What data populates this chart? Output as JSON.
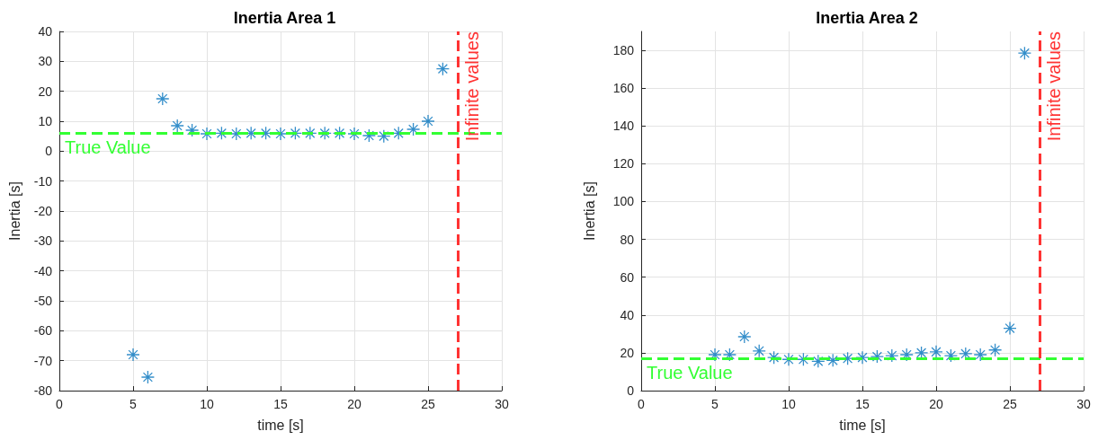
{
  "chart_data": [
    {
      "type": "scatter",
      "title": "Inertia Area 1",
      "xlabel": "time [s]",
      "ylabel": "Inertia [s]",
      "x": [
        5,
        6,
        7,
        8,
        9,
        10,
        11,
        12,
        13,
        14,
        15,
        16,
        17,
        18,
        19,
        20,
        21,
        22,
        23,
        24,
        25,
        26
      ],
      "series": [
        {
          "color": "#0072bd",
          "values": [
            -68,
            -75.5,
            17.5,
            8.5,
            7,
            5.8,
            6,
            5.8,
            6,
            6,
            5.8,
            6,
            6,
            6,
            6,
            5.8,
            5.2,
            5,
            6,
            7.3,
            10,
            27.5
          ]
        }
      ],
      "xlim": [
        0,
        30
      ],
      "xticks": [
        0,
        5,
        10,
        15,
        20,
        25,
        30
      ],
      "ylim": [
        -80,
        40
      ],
      "yticks": [
        -80,
        -70,
        -60,
        -50,
        -40,
        -30,
        -20,
        -10,
        0,
        10,
        20,
        30,
        40
      ],
      "grid": true,
      "marker": "cross",
      "ref_lines": [
        {
          "axis": "y",
          "value": 6,
          "label": "True Value",
          "color": "#33ff33",
          "line_style": "dashed"
        },
        {
          "axis": "x",
          "value": 27,
          "label": "Infinite values",
          "color": "#ff3333",
          "line_style": "dashed"
        }
      ]
    },
    {
      "type": "scatter",
      "title": "Inertia Area 2",
      "xlabel": "time [s]",
      "ylabel": "Inertia [s]",
      "x": [
        5,
        6,
        7,
        8,
        9,
        10,
        11,
        12,
        13,
        14,
        15,
        16,
        17,
        18,
        19,
        20,
        21,
        22,
        23,
        24,
        25,
        26
      ],
      "series": [
        {
          "color": "#0072bd",
          "values": [
            19,
            19,
            28.5,
            21,
            17.5,
            16.5,
            16.5,
            15.5,
            16,
            17,
            17.5,
            18,
            18.5,
            19,
            20,
            20.5,
            18.5,
            19.5,
            19,
            21.5,
            33,
            178.5
          ]
        }
      ],
      "xlim": [
        0,
        30
      ],
      "xticks": [
        0,
        5,
        10,
        15,
        20,
        25,
        30
      ],
      "ylim": [
        0,
        190
      ],
      "yticks": [
        0,
        20,
        40,
        60,
        80,
        100,
        120,
        140,
        160,
        180
      ],
      "grid": true,
      "marker": "cross",
      "ref_lines": [
        {
          "axis": "y",
          "value": 17,
          "label": "True Value",
          "color": "#33ff33",
          "line_style": "dashed"
        },
        {
          "axis": "x",
          "value": 27,
          "label": "Infinite values",
          "color": "#ff3333",
          "line_style": "dashed"
        }
      ]
    }
  ]
}
